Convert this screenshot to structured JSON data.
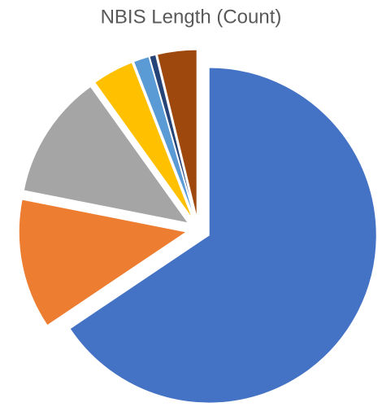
{
  "chart_data": {
    "type": "pie",
    "title": "NBIS Length (Count)",
    "categories": [
      null,
      null,
      null,
      null,
      null,
      null,
      null
    ],
    "values": [
      65.6,
      12.5,
      12,
      4,
      1.5,
      0.6,
      3.8
    ],
    "colors": [
      "#4472c4",
      "#ed7d31",
      "#a5a5a5",
      "#ffc000",
      "#5b9bd5",
      "#264478",
      "#9e480e"
    ],
    "exploded": true
  }
}
